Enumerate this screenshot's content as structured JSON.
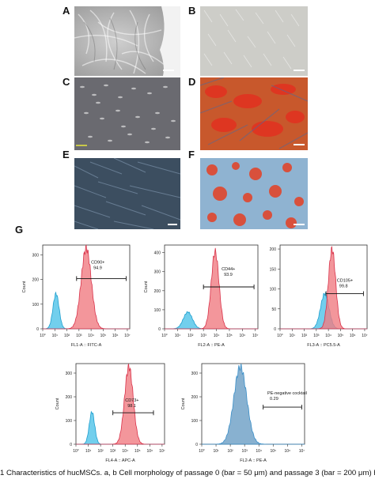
{
  "panel_labels": {
    "A": "A",
    "B": "B",
    "C": "C",
    "D": "D",
    "E": "E",
    "F": "F",
    "G": "G"
  },
  "colors": {
    "cyan_peak": "#4fc3e8",
    "red_peak": "#f07c82",
    "red_stroke": "#d9324a",
    "cyan_stroke": "#1f9fcf",
    "blue_peak": "#6a9ec4"
  },
  "flow_plots": [
    {
      "id": "cd90",
      "marker": "CD90+",
      "percent": "94.9",
      "xlabel": "FL1-A :: FITC-A",
      "ylabel": "Count",
      "yticks": [
        "0",
        "100",
        "200",
        "300"
      ],
      "ymax": 340
    },
    {
      "id": "cd44",
      "marker": "CD44+",
      "percent": "93.9",
      "xlabel": "FL2-A :: PE-A",
      "ylabel": "Count",
      "yticks": [
        "0",
        "100",
        "200",
        "300",
        "400"
      ],
      "ymax": 440
    },
    {
      "id": "cd105",
      "marker": "CD105+",
      "percent": "99.8",
      "xlabel": "FL3-A :: PC5.5-A",
      "ylabel": "Count",
      "yticks": [
        "0",
        "50",
        "100",
        "150",
        "200"
      ],
      "ymax": 210
    },
    {
      "id": "cd73",
      "marker": "CD73+",
      "percent": "98.1",
      "xlabel": "FL4-A :: APC-A",
      "ylabel": "Count",
      "yticks": [
        "0",
        "100",
        "200",
        "300"
      ],
      "ymax": 340
    },
    {
      "id": "pe_neg",
      "marker": "PE-negative cocktail",
      "percent": "0.29",
      "xlabel": "FL2-A :: PE-A",
      "ylabel": "Count",
      "yticks": [
        "0",
        "100",
        "200",
        "300"
      ],
      "ymax": 340
    }
  ],
  "x_ticks": [
    "10°",
    "10¹",
    "10²",
    "10³",
    "10⁴",
    "10⁵",
    "10⁶",
    "10⁷"
  ],
  "caption": "1 Characteristics of hucMSCs. a, b Cell morphology of passage 0 (bar = 50 μm) and passage 3 (bar = 200 μm) human umbilical cord"
}
